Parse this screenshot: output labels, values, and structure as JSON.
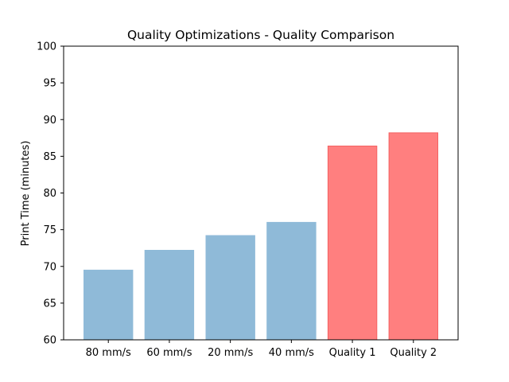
{
  "chart_data": {
    "type": "bar",
    "title": "Quality Optimizations - Quality Comparison",
    "xlabel": "",
    "ylabel": "Print Time (minutes)",
    "categories": [
      "80 mm/s",
      "60 mm/s",
      "20 mm/s",
      "40 mm/s",
      "Quality 1",
      "Quality 2"
    ],
    "values": [
      69.5,
      72.2,
      74.2,
      76.0,
      86.4,
      88.2
    ],
    "bar_colors": [
      "#8fbad8",
      "#8fbad8",
      "#8fbad8",
      "#8fbad8",
      "#ff7f7f",
      "#ff7f7f"
    ],
    "bar_edge_colors": [
      "#8fbad8",
      "#8fbad8",
      "#8fbad8",
      "#8fbad8",
      "#f46262",
      "#f46262"
    ],
    "ylim": [
      60,
      100
    ],
    "yticks": [
      60,
      65,
      70,
      75,
      80,
      85,
      90,
      95,
      100
    ],
    "grid": false,
    "legend": "none"
  }
}
